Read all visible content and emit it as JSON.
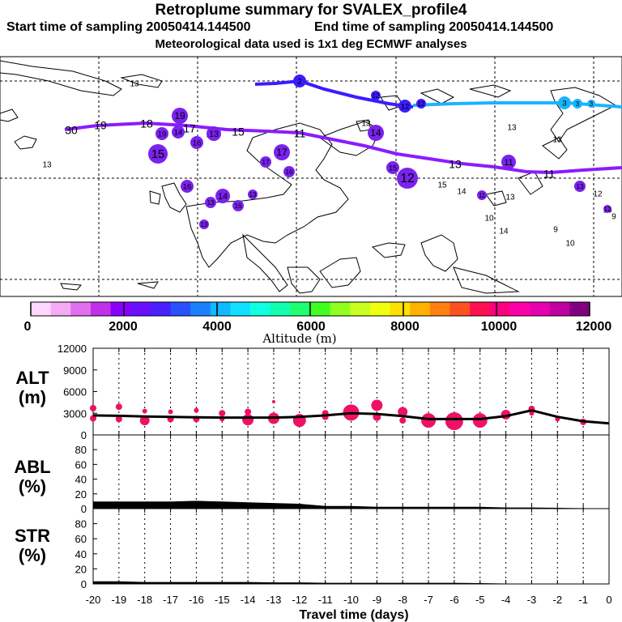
{
  "header": {
    "title": "Retroplume summary for SVALEX_profile4",
    "start": "Start time of sampling 20050414.144500",
    "end": "End time of sampling 20050414.144500",
    "met": "Meteorological data used is 1x1 deg ECMWF analyses"
  },
  "colors": {
    "track_upper": "#3a1cff",
    "track_lower": "#8a1cff",
    "track_light": "#19b4ff",
    "marker": "#ee1166",
    "plume_purple": "#7a22ee",
    "line": "#000000"
  },
  "colorbar": {
    "ticks": [
      "0",
      "2000",
      "4000",
      "6000",
      "8000",
      "10000",
      "12000"
    ],
    "label": "Altitude (m)",
    "colors": [
      "#ffd8ff",
      "#f5aaf5",
      "#e070ee",
      "#c030e8",
      "#8a00ff",
      "#6a10ff",
      "#4a20ff",
      "#2a50ff",
      "#1a80ff",
      "#10b8ff",
      "#10e0ff",
      "#10ffe0",
      "#10ffb0",
      "#20ff70",
      "#40ff20",
      "#90ff20",
      "#c8ff20",
      "#f0ff10",
      "#ffe000",
      "#ffb000",
      "#ff8010",
      "#ff5020",
      "#ff1050",
      "#ff0080",
      "#ff00a8",
      "#e800b0",
      "#c000a0",
      "#800080"
    ]
  },
  "map": {
    "labels": [
      {
        "t": "30",
        "k": "l"
      },
      {
        "t": "19",
        "k": "l"
      },
      {
        "t": "18",
        "k": "l"
      },
      {
        "t": "17",
        "k": "l"
      },
      {
        "t": "16",
        "k": "l"
      },
      {
        "t": "15",
        "k": "l"
      },
      {
        "t": "11",
        "k": "l"
      },
      {
        "t": "13",
        "k": "l"
      },
      {
        "t": "11",
        "k": "l"
      },
      {
        "t": "13",
        "k": "s"
      },
      {
        "t": "15",
        "k": "s"
      },
      {
        "t": "14",
        "k": "s"
      },
      {
        "t": "13",
        "k": "s"
      },
      {
        "t": "10",
        "k": "s"
      },
      {
        "t": "14",
        "k": "s"
      },
      {
        "t": "9",
        "k": "s"
      },
      {
        "t": "10",
        "k": "s"
      },
      {
        "t": "12",
        "k": "s"
      },
      {
        "t": "10",
        "k": "s"
      },
      {
        "t": "9",
        "k": "s"
      },
      {
        "t": "13",
        "k": "s"
      },
      {
        "t": "13",
        "k": "s"
      },
      {
        "t": "13",
        "k": "s"
      },
      {
        "t": "13",
        "k": "s"
      }
    ],
    "bubbles": [
      {
        "t": "15",
        "k": "b"
      },
      {
        "t": "19",
        "k": "b"
      },
      {
        "t": "19",
        "k": "b"
      },
      {
        "t": "14",
        "k": "b"
      },
      {
        "t": "16",
        "k": "b"
      },
      {
        "t": "13",
        "k": "b"
      },
      {
        "t": "17",
        "k": "b"
      },
      {
        "t": "16",
        "k": "b"
      },
      {
        "t": "16",
        "k": "b"
      },
      {
        "t": "13",
        "k": "b"
      },
      {
        "t": "14",
        "k": "b"
      },
      {
        "t": "13",
        "k": "b"
      },
      {
        "t": "16",
        "k": "b"
      },
      {
        "t": "13",
        "k": "b"
      },
      {
        "t": "14",
        "k": "b"
      },
      {
        "t": "17",
        "k": "b"
      },
      {
        "t": "15",
        "k": "b"
      },
      {
        "t": "12",
        "k": "b"
      },
      {
        "t": "11",
        "k": "b"
      },
      {
        "t": "11",
        "k": "b"
      },
      {
        "t": "13",
        "k": "b"
      },
      {
        "t": "12",
        "k": "b"
      },
      {
        "t": "12",
        "k": "b"
      },
      {
        "t": "12",
        "k": "b"
      },
      {
        "t": "12",
        "k": "b"
      },
      {
        "t": "2",
        "k": "b"
      },
      {
        "t": "3",
        "k": "b"
      },
      {
        "t": "3",
        "k": "b"
      },
      {
        "t": "3",
        "k": "b"
      }
    ]
  },
  "chart_data": [
    {
      "type": "line",
      "panel": "ALT",
      "ylabel_line1": "ALT",
      "ylabel_line2": "(m)",
      "ylim": [
        0,
        12000
      ],
      "yticks": [
        "12000",
        "9000",
        "6000",
        "3000",
        "0"
      ],
      "xlim": [
        -20,
        0
      ],
      "x": [
        -20,
        -19,
        -18,
        -17,
        -16,
        -15,
        -14,
        -13,
        -12,
        -11,
        -10,
        -9,
        -8,
        -7,
        -6,
        -5,
        -4,
        -3,
        -2,
        -1,
        0
      ],
      "y": [
        2700,
        2650,
        2550,
        2500,
        2450,
        2400,
        2400,
        2400,
        2500,
        2700,
        3000,
        2900,
        2600,
        2200,
        2200,
        2200,
        2600,
        3400,
        2500,
        1900,
        1600
      ],
      "markers": [
        {
          "x": -20,
          "y": 3700,
          "r": 4
        },
        {
          "x": -20,
          "y": 2300,
          "r": 4
        },
        {
          "x": -19,
          "y": 3900,
          "r": 4
        },
        {
          "x": -19,
          "y": 2200,
          "r": 4
        },
        {
          "x": -18,
          "y": 3300,
          "r": 3
        },
        {
          "x": -18,
          "y": 2000,
          "r": 6
        },
        {
          "x": -17,
          "y": 3200,
          "r": 3
        },
        {
          "x": -17,
          "y": 2200,
          "r": 4
        },
        {
          "x": -16,
          "y": 3400,
          "r": 3
        },
        {
          "x": -16,
          "y": 2200,
          "r": 4
        },
        {
          "x": -15,
          "y": 3000,
          "r": 4
        },
        {
          "x": -15,
          "y": 2200,
          "r": 3
        },
        {
          "x": -14,
          "y": 3200,
          "r": 4
        },
        {
          "x": -14,
          "y": 2100,
          "r": 7
        },
        {
          "x": -13,
          "y": 4600,
          "r": 2
        },
        {
          "x": -13,
          "y": 2300,
          "r": 7
        },
        {
          "x": -12,
          "y": 2000,
          "r": 8
        },
        {
          "x": -11,
          "y": 3000,
          "r": 4
        },
        {
          "x": -11,
          "y": 2500,
          "r": 4
        },
        {
          "x": -10,
          "y": 3100,
          "r": 10
        },
        {
          "x": -9,
          "y": 4100,
          "r": 7
        },
        {
          "x": -9,
          "y": 2500,
          "r": 5
        },
        {
          "x": -8,
          "y": 3200,
          "r": 6
        },
        {
          "x": -8,
          "y": 2000,
          "r": 4
        },
        {
          "x": -7,
          "y": 2000,
          "r": 9
        },
        {
          "x": -6,
          "y": 1900,
          "r": 11
        },
        {
          "x": -5,
          "y": 2000,
          "r": 9
        },
        {
          "x": -4,
          "y": 2800,
          "r": 6
        },
        {
          "x": -3,
          "y": 3600,
          "r": 4
        },
        {
          "x": -3,
          "y": 3000,
          "r": 3
        },
        {
          "x": -2,
          "y": 2200,
          "r": 3
        },
        {
          "x": -1,
          "y": 1800,
          "r": 4
        }
      ]
    },
    {
      "type": "area",
      "panel": "ABL",
      "ylabel_line1": "ABL",
      "ylabel_line2": "(%)",
      "ylim": [
        0,
        100
      ],
      "yticks": [
        "80",
        "60",
        "40",
        "20",
        "0"
      ],
      "xlim": [
        -20,
        0
      ],
      "x": [
        -20,
        -19,
        -18,
        -17,
        -16,
        -15,
        -14,
        -13,
        -12,
        -11,
        -10,
        -9,
        -8,
        -7,
        -6,
        -5,
        -4,
        -3,
        -2,
        -1,
        0
      ],
      "y": [
        9,
        9,
        9,
        9,
        10,
        9,
        8,
        7,
        6,
        3,
        3,
        2,
        2,
        2,
        2,
        2,
        1,
        1,
        0.5,
        0,
        0
      ]
    },
    {
      "type": "area",
      "panel": "STR",
      "ylabel_line1": "STR",
      "ylabel_line2": "(%)",
      "ylim": [
        0,
        100
      ],
      "yticks": [
        "80",
        "60",
        "40",
        "20",
        "0"
      ],
      "xlim": [
        -20,
        0
      ],
      "x": [
        -20,
        -19,
        -18,
        -17,
        -16,
        -15,
        -14,
        -13,
        -12,
        -11,
        -10,
        -9,
        -8,
        -7,
        -6,
        -5,
        -4,
        -3,
        -2,
        -1,
        0
      ],
      "y": [
        3,
        3,
        2,
        2,
        2,
        2,
        2,
        1.5,
        1.5,
        1,
        1,
        1,
        1,
        1,
        1,
        0.5,
        0,
        0,
        0,
        0,
        0
      ],
      "xlabel": "Travel time (days)",
      "xticks": [
        "-20",
        "-19",
        "-18",
        "-17",
        "-16",
        "-15",
        "-14",
        "-13",
        "-12",
        "-11",
        "-10",
        "-9",
        "-8",
        "-7",
        "-6",
        "-5",
        "-4",
        "-3",
        "-2",
        "-1",
        "0"
      ]
    }
  ]
}
